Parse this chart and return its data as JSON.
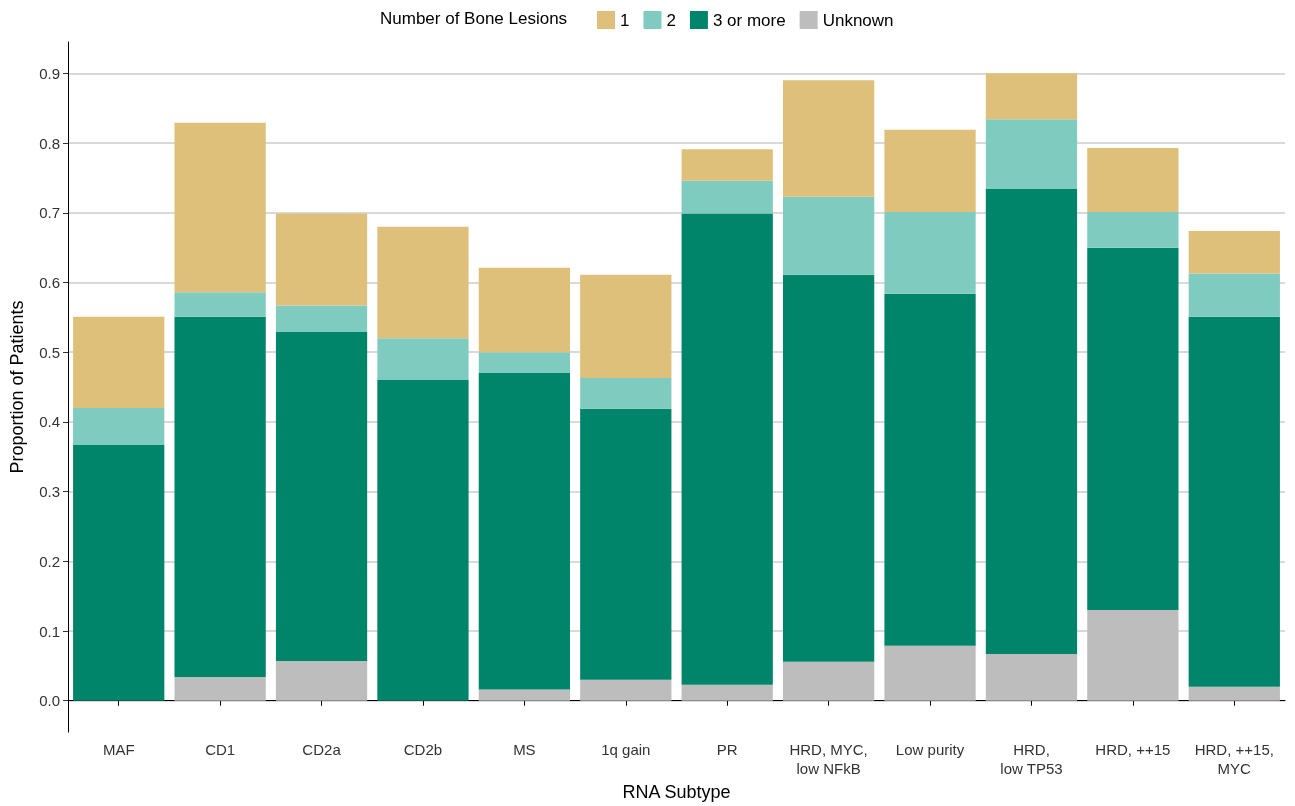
{
  "chart_data": {
    "type": "bar",
    "stacked": true,
    "xlabel": "RNA Subtype",
    "ylabel": "Proportion of Patients",
    "legend_title": "Number of Bone Lesions",
    "categories": [
      "MAF",
      "CD1",
      "CD2a",
      "CD2b",
      "MS",
      "1q gain",
      "PR",
      "HRD, MYC,\nlow NFkB",
      "Low purity",
      "HRD,\nlow TP53",
      "HRD, ++15",
      "HRD, ++15,\nMYC"
    ],
    "series": [
      {
        "name": "Unknown",
        "color": "#bdbdbd",
        "values": [
          0,
          0.034,
          0.057,
          0,
          0.016,
          0.03,
          0.023,
          0.056,
          0.079,
          0.067,
          0.13,
          0.02
        ]
      },
      {
        "name": "3 or more",
        "color": "#00856a",
        "values": [
          0.367,
          0.517,
          0.472,
          0.46,
          0.454,
          0.389,
          0.676,
          0.555,
          0.505,
          0.667,
          0.52,
          0.531
        ]
      },
      {
        "name": "2",
        "color": "#80cbc0",
        "values": [
          0.053,
          0.035,
          0.038,
          0.06,
          0.03,
          0.044,
          0.047,
          0.112,
          0.117,
          0.1,
          0.051,
          0.062
        ]
      },
      {
        "name": "1",
        "color": "#dfc07b",
        "values": [
          0.131,
          0.243,
          0.132,
          0.16,
          0.121,
          0.148,
          0.045,
          0.167,
          0.118,
          0.066,
          0.092,
          0.061
        ]
      }
    ],
    "ylim": [
      -0.045,
      0.945
    ],
    "yticks": [
      {
        "value": 0,
        "label": "0.0"
      },
      {
        "value": 0.1,
        "label": "0.1"
      },
      {
        "value": 0.2,
        "label": "0.2"
      },
      {
        "value": 0.3,
        "label": "0.3"
      },
      {
        "value": 0.4,
        "label": "0.4"
      },
      {
        "value": 0.5,
        "label": "0.5"
      },
      {
        "value": 0.6,
        "label": "0.6"
      },
      {
        "value": 0.7,
        "label": "0.7"
      },
      {
        "value": 0.8,
        "label": "0.8"
      },
      {
        "value": 0.9,
        "label": "0.9"
      }
    ],
    "grid": "y",
    "legend": "top"
  }
}
